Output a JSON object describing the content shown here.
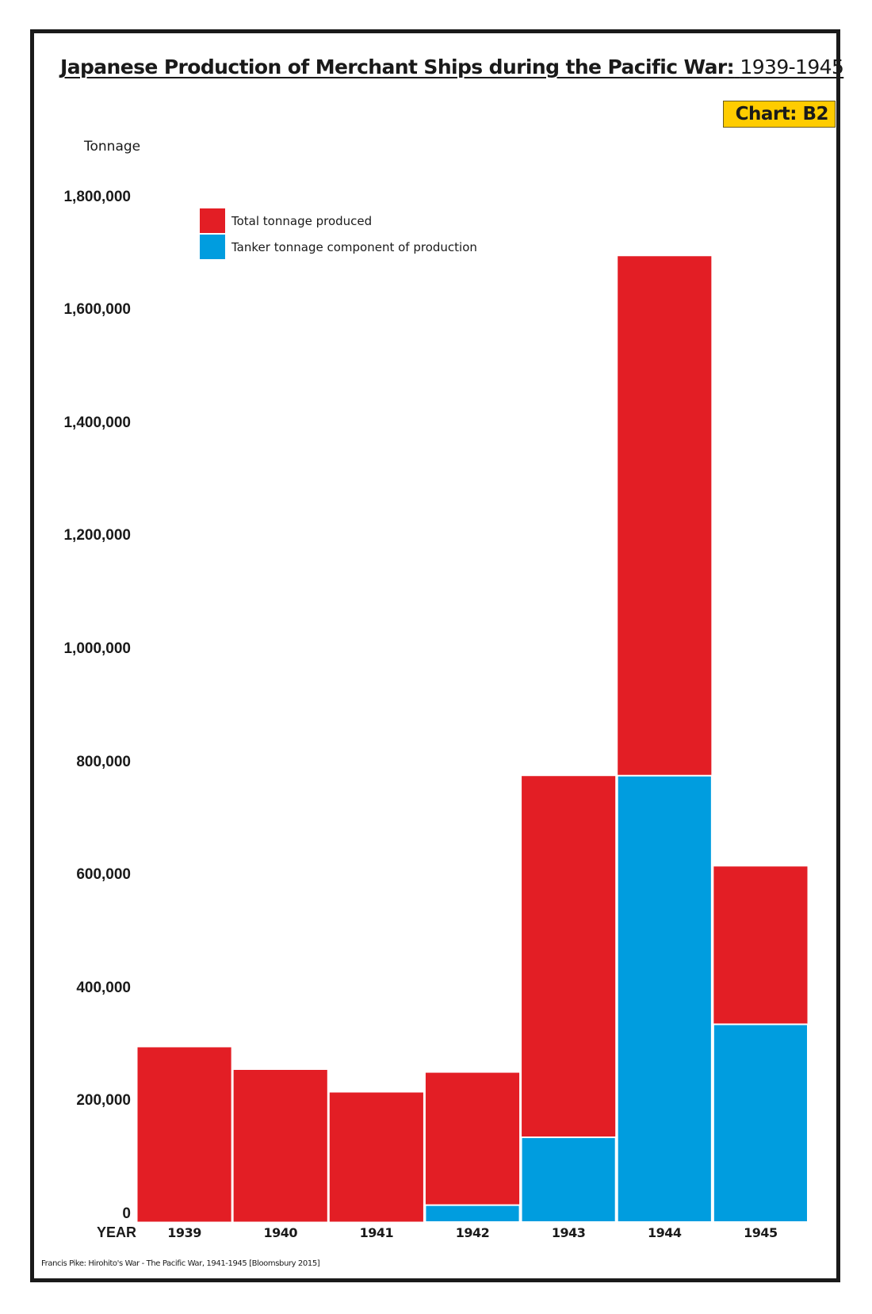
{
  "chart_data": {
    "type": "bar",
    "title_main": "Japanese Production of Merchant Ships during the Pacific War:",
    "title_years": "1939-1945",
    "badge": "Chart: B2",
    "ylabel": "Tonnage",
    "xlabel": "YEAR",
    "ylim": [
      0,
      1800000
    ],
    "yticks": [
      "0",
      "200,000",
      "400,000",
      "600,000",
      "800,000",
      "1,000,000",
      "1,200,000",
      "1,400,000",
      "1,600,000",
      "1,800,000"
    ],
    "ytick_values": [
      0,
      200000,
      400000,
      600000,
      800000,
      1000000,
      1200000,
      1400000,
      1600000,
      1800000
    ],
    "categories": [
      "1939",
      "1940",
      "1941",
      "1942",
      "1943",
      "1944",
      "1945"
    ],
    "series": [
      {
        "name": "Total tonnage produced",
        "color": "#e31e25",
        "values": [
          310000,
          270000,
          230000,
          265000,
          790000,
          1710000,
          630000
        ]
      },
      {
        "name": "Tanker tonnage component of production",
        "color": "#009ddf",
        "values": [
          0,
          0,
          0,
          30000,
          150000,
          790000,
          350000
        ]
      }
    ],
    "legend_position": "top-left",
    "grid": false,
    "source": "Francis Pike:  Hirohito's War - The Pacific War, 1941-1945   [Bloomsbury 2015]"
  }
}
